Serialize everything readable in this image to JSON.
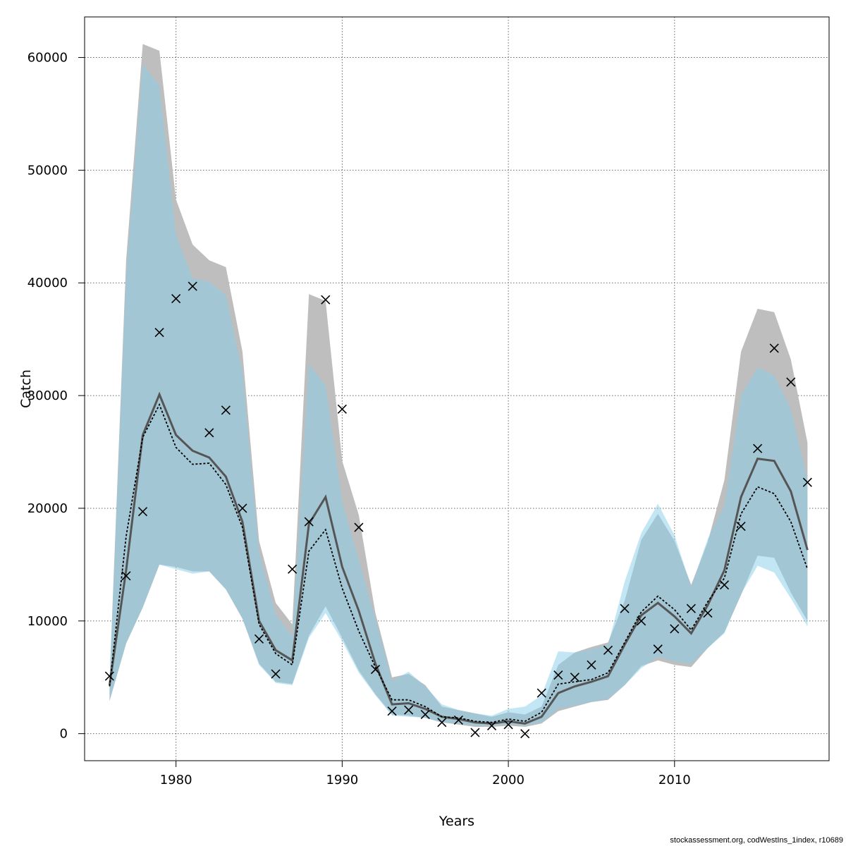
{
  "chart_data": {
    "type": "line",
    "xlabel": "Years",
    "ylabel": "Catch",
    "xlim": [
      1974.5,
      2019.3
    ],
    "ylim": [
      -2400,
      63600
    ],
    "xticks": [
      1980,
      1990,
      2000,
      2010
    ],
    "yticks": [
      0,
      10000,
      20000,
      30000,
      40000,
      50000,
      60000
    ],
    "grid": true,
    "colors": {
      "band_a": "#bebebe",
      "band_b": "#87ceeb",
      "line_a": "#555555",
      "line_b": "#000000",
      "points": "#000000",
      "grid": "#666666"
    },
    "x": [
      1976,
      1977,
      1978,
      1979,
      1980,
      1981,
      1982,
      1983,
      1984,
      1985,
      1986,
      1987,
      1988,
      1989,
      1990,
      1991,
      1992,
      1993,
      1994,
      1995,
      1996,
      1997,
      1998,
      1999,
      2000,
      2001,
      2002,
      2003,
      2004,
      2005,
      2006,
      2007,
      2008,
      2009,
      2010,
      2011,
      2012,
      2013,
      2014,
      2015,
      2016,
      2017,
      2018
    ],
    "series": [
      {
        "role": "estimate",
        "values": [
          4300,
          14500,
          26500,
          30100,
          26500,
          25100,
          24500,
          22800,
          18800,
          10000,
          7400,
          6500,
          18600,
          21000,
          14800,
          10900,
          6200,
          2600,
          2700,
          2200,
          1500,
          1300,
          1000,
          900,
          1100,
          900,
          1500,
          3600,
          4200,
          4600,
          5100,
          7900,
          10500,
          11600,
          10400,
          8900,
          11400,
          14500,
          21000,
          24400,
          24200,
          21500,
          16300
        ],
        "lower": [
          2900,
          8000,
          11200,
          15000,
          14800,
          14400,
          14400,
          12800,
          10200,
          6200,
          4600,
          4400,
          8700,
          11300,
          8500,
          5600,
          3500,
          1700,
          1600,
          1400,
          1000,
          800,
          600,
          600,
          700,
          600,
          900,
          2000,
          2400,
          2800,
          3000,
          4300,
          6000,
          6500,
          6100,
          5900,
          7600,
          9000,
          12300,
          15800,
          15600,
          12500,
          10000
        ],
        "upper": [
          4700,
          42000,
          61200,
          60600,
          47400,
          43400,
          42000,
          41400,
          33900,
          17100,
          11600,
          9700,
          39000,
          38400,
          24200,
          19400,
          10700,
          5000,
          5300,
          4300,
          2400,
          2100,
          1800,
          1500,
          1900,
          1700,
          2400,
          6100,
          7200,
          7700,
          8100,
          11800,
          17200,
          19500,
          17100,
          13200,
          17000,
          22500,
          33900,
          37700,
          37400,
          33200,
          25800
        ]
      },
      {
        "role": "model",
        "values": [
          4200,
          17500,
          26300,
          29200,
          25400,
          23900,
          24000,
          22100,
          18300,
          9700,
          7100,
          6100,
          16200,
          18100,
          12900,
          9100,
          5900,
          3000,
          3000,
          2400,
          1500,
          1400,
          1100,
          1000,
          1300,
          1100,
          1900,
          4400,
          4600,
          4800,
          5400,
          8100,
          10800,
          12200,
          11000,
          9200,
          11700,
          13800,
          19500,
          21900,
          21300,
          18800,
          14600
        ],
        "lower": [
          2900,
          8000,
          11200,
          15000,
          14600,
          14200,
          14400,
          12800,
          10200,
          6100,
          4500,
          4300,
          8500,
          10700,
          8200,
          5400,
          3400,
          1600,
          1500,
          1400,
          1000,
          900,
          700,
          700,
          800,
          700,
          1000,
          2200,
          2500,
          2800,
          3100,
          4300,
          5800,
          6800,
          6400,
          6200,
          7600,
          8900,
          12400,
          14900,
          14300,
          12000,
          9500
        ],
        "upper": [
          4700,
          40800,
          59400,
          57500,
          44300,
          40400,
          40100,
          38900,
          32100,
          16100,
          10600,
          8600,
          32800,
          30900,
          20600,
          15400,
          10200,
          4700,
          5500,
          4200,
          2600,
          2100,
          1800,
          1600,
          2200,
          2400,
          3400,
          7300,
          7200,
          7500,
          7900,
          13500,
          17800,
          20400,
          17600,
          13000,
          17300,
          20200,
          30000,
          32500,
          31800,
          28800,
          22500
        ]
      }
    ],
    "observations": [
      5100,
      14000,
      19700,
      35600,
      38600,
      39700,
      26700,
      28700,
      20000,
      8400,
      5300,
      14600,
      18800,
      38500,
      28800,
      18300,
      5700,
      2000,
      2100,
      1700,
      1000,
      1200,
      100,
      700,
      800,
      0,
      3600,
      5200,
      5000,
      6100,
      7400,
      11100,
      10000,
      7500,
      9300,
      11100,
      10700,
      13200,
      18400,
      25300,
      34200,
      31200,
      22300
    ],
    "credit": "stockassessment.org, codWestIns_1index, r10689"
  }
}
